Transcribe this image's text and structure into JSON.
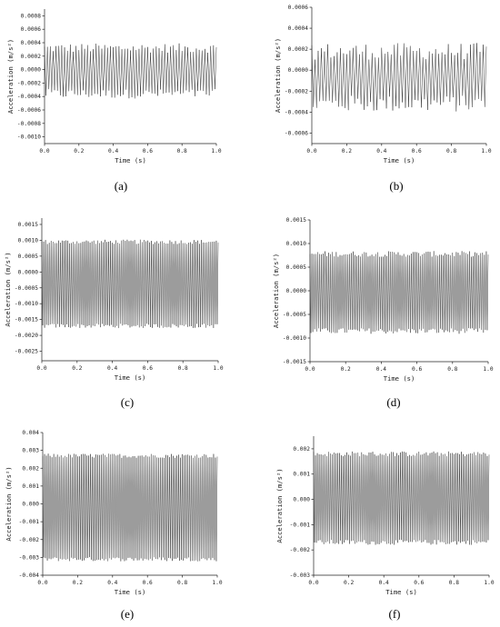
{
  "chart_data": [
    {
      "type": "line",
      "panel_label": "(a)",
      "xlabel": "Time (s)",
      "ylabel": "Acceleration (m/s²)",
      "xlim": [
        0.0,
        1.0
      ],
      "ylim": [
        -0.0011,
        0.0009
      ],
      "xticks": [
        "0.0",
        "0.2",
        "0.4",
        "0.6",
        "0.8",
        "1.0"
      ],
      "yticks": [
        "0.0008",
        "0.0006",
        "0.0004",
        "0.0002",
        "0.0000",
        "-0.0002",
        "-0.0004",
        "-0.0006",
        "-0.0008",
        "-0.0010"
      ],
      "ytick_values": [
        0.0008,
        0.0006,
        0.0004,
        0.0002,
        0.0,
        -0.0002,
        -0.0004,
        -0.0006,
        -0.0008,
        -0.001
      ],
      "series": [
        {
          "signal": {
            "cycles": 60,
            "upper": 0.00032,
            "lower": -0.00036,
            "noise": 7e-05
          }
        }
      ]
    },
    {
      "type": "line",
      "panel_label": "(b)",
      "xlabel": "Time (s)",
      "ylabel": "Acceleration (m/s²)",
      "xlim": [
        0.0,
        1.0
      ],
      "ylim": [
        -0.0007,
        0.0006
      ],
      "xticks": [
        "0.0",
        "0.2",
        "0.4",
        "0.6",
        "0.8",
        "1.0"
      ],
      "yticks": [
        "0.0006",
        "0.0004",
        "0.0002",
        "0.0000",
        "-0.0002",
        "-0.0004",
        "-0.0006"
      ],
      "ytick_values": [
        0.0006,
        0.0004,
        0.0002,
        0.0,
        -0.0002,
        -0.0004,
        -0.0006
      ],
      "series": [
        {
          "signal": {
            "cycles": 55,
            "upper": 0.00018,
            "lower": -0.00032,
            "noise": 8e-05
          }
        }
      ]
    },
    {
      "type": "line",
      "panel_label": "(c)",
      "xlabel": "Time (s)",
      "ylabel": "Acceleration (m/s²)",
      "xlim": [
        0.0,
        1.0
      ],
      "ylim": [
        -0.0028,
        0.0017
      ],
      "xticks": [
        "0.0",
        "0.2",
        "0.4",
        "0.6",
        "0.8",
        "1.0"
      ],
      "yticks": [
        "0.0015",
        "0.0010",
        "0.0005",
        "0.0000",
        "-0.0005",
        "-0.0010",
        "-0.0015",
        "-0.0020",
        "-0.0025"
      ],
      "ytick_values": [
        0.0015,
        0.001,
        0.0005,
        0.0,
        -0.0005,
        -0.001,
        -0.0015,
        -0.002,
        -0.0025
      ],
      "series": [
        {
          "signal": {
            "cycles": 95,
            "upper": 0.00095,
            "lower": -0.0017,
            "noise": 7e-05
          }
        }
      ]
    },
    {
      "type": "line",
      "panel_label": "(d)",
      "xlabel": "Time (s)",
      "ylabel": "Acceleration (m/s²)",
      "xlim": [
        0.0,
        1.0
      ],
      "ylim": [
        -0.0015,
        0.0015
      ],
      "xticks": [
        "0.0",
        "0.2",
        "0.4",
        "0.6",
        "0.8",
        "1.0"
      ],
      "yticks": [
        "0.0015",
        "0.0010",
        "0.0005",
        "0.0000",
        "-0.0005",
        "-0.0010",
        "-0.0015"
      ],
      "ytick_values": [
        0.0015,
        0.001,
        0.0005,
        0.0,
        -0.0005,
        -0.001,
        -0.0015
      ],
      "series": [
        {
          "signal": {
            "cycles": 95,
            "upper": 0.00078,
            "lower": -0.00085,
            "noise": 6e-05
          }
        }
      ]
    },
    {
      "type": "line",
      "panel_label": "(e)",
      "xlabel": "Time (s)",
      "ylabel": "Acceleration (m/s²)",
      "xlim": [
        0.0,
        1.0
      ],
      "ylim": [
        -0.004,
        0.004
      ],
      "xticks": [
        "0.0",
        "0.2",
        "0.4",
        "0.6",
        "0.8",
        "1.0"
      ],
      "yticks": [
        "0.004",
        "0.003",
        "0.002",
        "0.001",
        "0.000",
        "-0.001",
        "-0.002",
        "-0.003",
        "-0.004"
      ],
      "ytick_values": [
        0.004,
        0.003,
        0.002,
        0.001,
        0.0,
        -0.001,
        -0.002,
        -0.003,
        -0.004
      ],
      "series": [
        {
          "signal": {
            "cycles": 95,
            "upper": 0.0027,
            "lower": -0.0031,
            "noise": 0.00012
          }
        }
      ]
    },
    {
      "type": "line",
      "panel_label": "(f)",
      "xlabel": "Time (s)",
      "ylabel": "Acceleration (m/s²)",
      "xlim": [
        0.0,
        1.0
      ],
      "ylim": [
        -0.003,
        0.0025
      ],
      "xticks": [
        "0.0",
        "0.2",
        "0.4",
        "0.6",
        "0.8",
        "1.0"
      ],
      "yticks": [
        "0.002",
        "0.001",
        "0.000",
        "-0.001",
        "-0.002",
        "-0.003"
      ],
      "ytick_values": [
        0.002,
        0.001,
        0.0,
        -0.001,
        -0.002,
        -0.003
      ],
      "series": [
        {
          "signal": {
            "cycles": 95,
            "upper": 0.0018,
            "lower": -0.0017,
            "noise": 0.0001
          }
        }
      ]
    }
  ]
}
